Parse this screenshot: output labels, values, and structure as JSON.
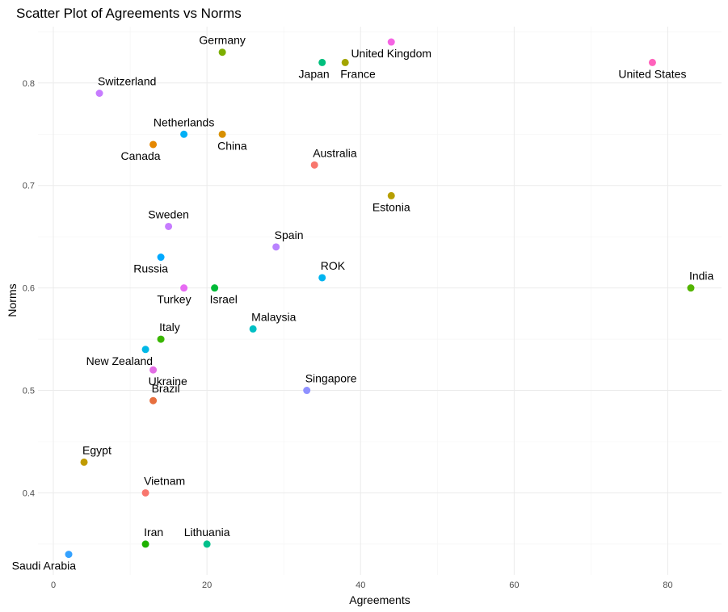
{
  "chart_data": {
    "type": "scatter",
    "title": "Scatter Plot of Agreements vs Norms",
    "xlabel": "Agreements",
    "ylabel": "Norms",
    "xlim": [
      -2,
      87
    ],
    "ylim": [
      0.32,
      0.855
    ],
    "xticks": [
      0,
      20,
      40,
      60,
      80
    ],
    "yticks": [
      0.4,
      0.5,
      0.6,
      0.7,
      0.8
    ],
    "grid": true,
    "legend": "none",
    "points": [
      {
        "label": "Germany",
        "x": 22,
        "y": 0.83,
        "color": "#7cae00",
        "pos": "above"
      },
      {
        "label": "United Kingdom",
        "x": 44,
        "y": 0.84,
        "color": "#f564e3",
        "pos": "below"
      },
      {
        "label": "Japan",
        "x": 35,
        "y": 0.82,
        "color": "#00bf7d",
        "pos": "below-left"
      },
      {
        "label": "France",
        "x": 38,
        "y": 0.82,
        "color": "#a3a500",
        "pos": "below-right"
      },
      {
        "label": "United States",
        "x": 78,
        "y": 0.82,
        "color": "#ff62bc",
        "pos": "below"
      },
      {
        "label": "Switzerland",
        "x": 6,
        "y": 0.79,
        "color": "#c77cff",
        "pos": "above-right"
      },
      {
        "label": "Netherlands",
        "x": 17,
        "y": 0.75,
        "color": "#00b0f6",
        "pos": "above"
      },
      {
        "label": "China",
        "x": 22,
        "y": 0.75,
        "color": "#d89000",
        "pos": "below-right"
      },
      {
        "label": "Canada",
        "x": 13,
        "y": 0.74,
        "color": "#e58700",
        "pos": "below-left"
      },
      {
        "label": "Australia",
        "x": 34,
        "y": 0.72,
        "color": "#f8766d",
        "pos": "above-right"
      },
      {
        "label": "Estonia",
        "x": 44,
        "y": 0.69,
        "color": "#b79f00",
        "pos": "below"
      },
      {
        "label": "Sweden",
        "x": 15,
        "y": 0.66,
        "color": "#c77cff",
        "pos": "above"
      },
      {
        "label": "Spain",
        "x": 29,
        "y": 0.64,
        "color": "#b983ff",
        "pos": "above-right"
      },
      {
        "label": "Russia",
        "x": 14,
        "y": 0.63,
        "color": "#00a9ff",
        "pos": "below-left"
      },
      {
        "label": "ROK",
        "x": 35,
        "y": 0.61,
        "color": "#00b4f0",
        "pos": "above-right"
      },
      {
        "label": "India",
        "x": 83,
        "y": 0.6,
        "color": "#53b400",
        "pos": "above-right"
      },
      {
        "label": "Turkey",
        "x": 17,
        "y": 0.6,
        "color": "#e76bf3",
        "pos": "below-left"
      },
      {
        "label": "Israel",
        "x": 21,
        "y": 0.6,
        "color": "#00ba38",
        "pos": "below-right"
      },
      {
        "label": "Malaysia",
        "x": 26,
        "y": 0.56,
        "color": "#00bfc4",
        "pos": "above-right"
      },
      {
        "label": "Italy",
        "x": 14,
        "y": 0.55,
        "color": "#39b600",
        "pos": "above-right"
      },
      {
        "label": "New Zealand",
        "x": 12,
        "y": 0.54,
        "color": "#00b8e7",
        "pos": "below-left"
      },
      {
        "label": "Ukraine",
        "x": 13,
        "y": 0.52,
        "color": "#e36ee5",
        "pos": "below-right"
      },
      {
        "label": "Singapore",
        "x": 33,
        "y": 0.5,
        "color": "#8f91ff",
        "pos": "above-right"
      },
      {
        "label": "Brazil",
        "x": 13,
        "y": 0.49,
        "color": "#e76f3e",
        "pos": "above-right"
      },
      {
        "label": "Egypt",
        "x": 4,
        "y": 0.43,
        "color": "#c09b00",
        "pos": "above-right"
      },
      {
        "label": "Vietnam",
        "x": 12,
        "y": 0.4,
        "color": "#f8766d",
        "pos": "above-right"
      },
      {
        "label": "Iran",
        "x": 12,
        "y": 0.35,
        "color": "#1eb100",
        "pos": "above-right"
      },
      {
        "label": "Lithuania",
        "x": 20,
        "y": 0.35,
        "color": "#00c08b",
        "pos": "above"
      },
      {
        "label": "Saudi Arabia",
        "x": 2,
        "y": 0.34,
        "color": "#35a2ff",
        "pos": "below-left"
      }
    ]
  }
}
